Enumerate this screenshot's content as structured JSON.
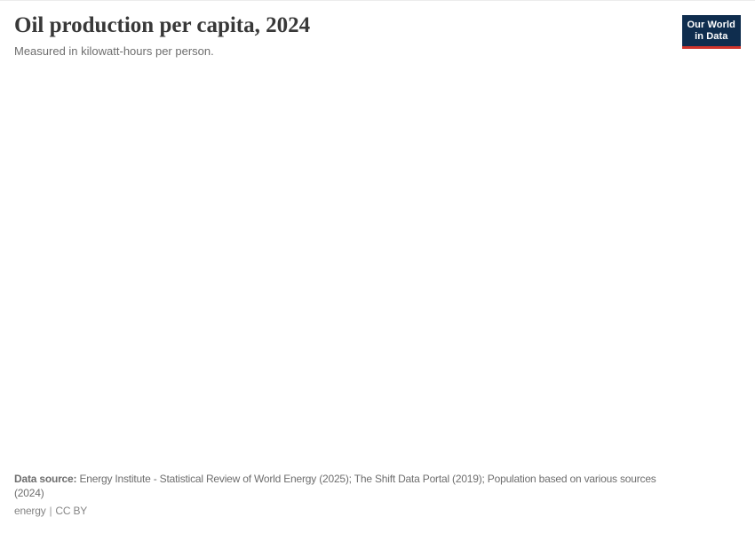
{
  "header": {
    "title": "Oil production per capita, 2024",
    "subtitle": "Measured in kilowatt-hours per person."
  },
  "logo": {
    "line1": "Our World",
    "line2": "in Data",
    "bg_color": "#0f2d4e",
    "accent_color": "#d0342c",
    "text_color": "#ffffff"
  },
  "footer": {
    "data_source_label": "Data source:",
    "data_source_text_line1": "Energy Institute - Statistical Review of World Energy (2025); The Shift Data Portal (2019); Population based on various sources",
    "data_source_text_line2": "(2024)",
    "topic_link": "energy",
    "separator": "|",
    "license_link": "CC BY"
  },
  "chart_data": {
    "type": "map",
    "title": "Oil production per capita, 2024",
    "subtitle": "Measured in kilowatt-hours per person.",
    "unit": "kilowatt-hours per person",
    "year": "2024",
    "series": [],
    "plot_area_state": "blank - no chart content rendered in screenshot",
    "data_sources": "Energy Institute - Statistical Review of World Energy (2025); The Shift Data Portal (2019); Population based on various sources (2024)"
  }
}
